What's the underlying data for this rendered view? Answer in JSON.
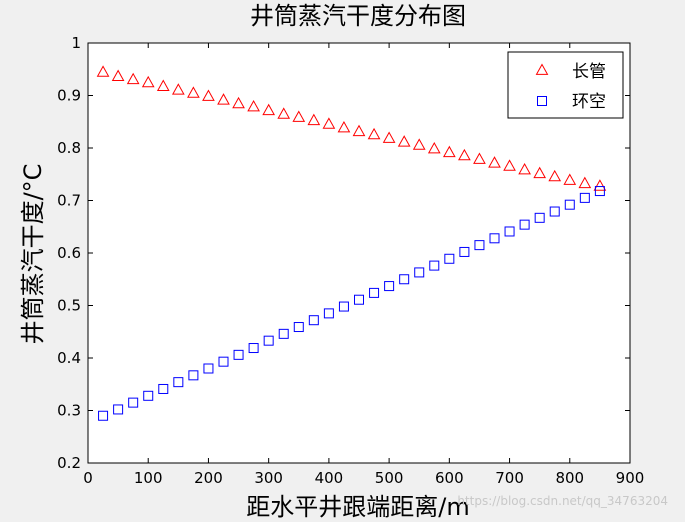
{
  "chart_data": {
    "type": "scatter",
    "title": "井筒蒸汽干度分布图",
    "xlabel": "距水平井跟端距离/m",
    "ylabel": "井筒蒸汽干度/°C",
    "xlim": [
      0,
      900
    ],
    "ylim": [
      0.2,
      1
    ],
    "xticks": [
      0,
      100,
      200,
      300,
      400,
      500,
      600,
      700,
      800,
      900
    ],
    "yticks": [
      0.2,
      0.3,
      0.4,
      0.5,
      0.6,
      0.7,
      0.8,
      0.9,
      1
    ],
    "xtick_labels": [
      "0",
      "100",
      "200",
      "300",
      "400",
      "500",
      "600",
      "700",
      "800",
      "900"
    ],
    "ytick_labels": [
      "0.2",
      "0.3",
      "0.4",
      "0.5",
      "0.6",
      "0.7",
      "0.8",
      "0.9",
      "1"
    ],
    "legend_position": "top-right",
    "grid": false,
    "x": [
      25,
      50,
      75,
      100,
      125,
      150,
      175,
      200,
      225,
      250,
      275,
      300,
      325,
      350,
      375,
      400,
      425,
      450,
      475,
      500,
      525,
      550,
      575,
      600,
      625,
      650,
      675,
      700,
      725,
      750,
      775,
      800,
      825,
      850
    ],
    "series": [
      {
        "name": "长管",
        "marker": "triangle",
        "color": "#ff0000",
        "values": [
          0.945,
          0.937,
          0.931,
          0.925,
          0.918,
          0.911,
          0.905,
          0.899,
          0.892,
          0.885,
          0.879,
          0.872,
          0.865,
          0.859,
          0.853,
          0.846,
          0.839,
          0.832,
          0.826,
          0.819,
          0.812,
          0.806,
          0.799,
          0.792,
          0.786,
          0.779,
          0.772,
          0.766,
          0.759,
          0.752,
          0.746,
          0.739,
          0.733,
          0.728
        ]
      },
      {
        "name": "环空",
        "marker": "square",
        "color": "#0000ff",
        "values": [
          0.29,
          0.302,
          0.315,
          0.328,
          0.341,
          0.354,
          0.367,
          0.38,
          0.393,
          0.406,
          0.419,
          0.433,
          0.446,
          0.459,
          0.472,
          0.485,
          0.498,
          0.511,
          0.524,
          0.537,
          0.55,
          0.563,
          0.576,
          0.589,
          0.602,
          0.615,
          0.628,
          0.641,
          0.654,
          0.667,
          0.679,
          0.692,
          0.705,
          0.718
        ]
      }
    ]
  },
  "watermark": "https://blog.csdn.net/qq_34763204"
}
